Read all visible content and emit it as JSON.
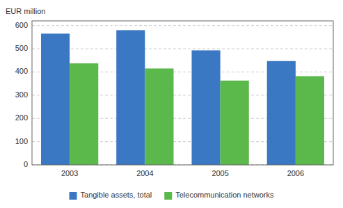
{
  "chart_data": {
    "type": "bar",
    "ylabel": "EUR million",
    "categories": [
      "2003",
      "2004",
      "2005",
      "2006"
    ],
    "series": [
      {
        "name": "Tangible assets, total",
        "color": "#3B78C3",
        "values": [
          565,
          580,
          493,
          447
        ]
      },
      {
        "name": "Telecommunication networks",
        "color": "#5BB84A",
        "values": [
          437,
          415,
          363,
          382
        ]
      }
    ],
    "ylim": [
      0,
      620
    ],
    "yticks": [
      0,
      100,
      200,
      300,
      400,
      500,
      600
    ],
    "grid": true,
    "legend": "bottom"
  }
}
